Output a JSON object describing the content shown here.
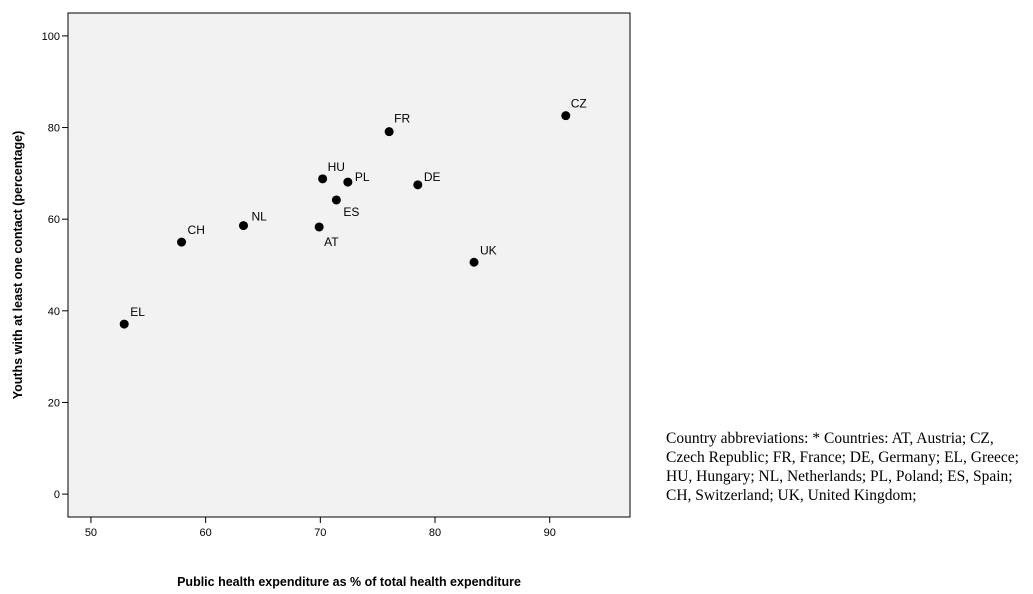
{
  "chart_data": {
    "type": "scatter",
    "title": "",
    "xlabel": "Public health expenditure as % of total health expenditure",
    "ylabel": "Youths with at least one contact (percentage)",
    "xlim": [
      48,
      97
    ],
    "ylim": [
      -5,
      105
    ],
    "x_ticks": [
      50,
      60,
      70,
      80,
      90
    ],
    "y_ticks": [
      0,
      20,
      40,
      60,
      80,
      100
    ],
    "grid": false,
    "background": "#f2f2f2",
    "points": [
      {
        "label": "EL",
        "x": 52.9,
        "y": 37.1
      },
      {
        "label": "CH",
        "x": 57.9,
        "y": 55.0
      },
      {
        "label": "NL",
        "x": 63.3,
        "y": 58.6
      },
      {
        "label": "AT",
        "x": 69.9,
        "y": 58.3
      },
      {
        "label": "HU",
        "x": 70.2,
        "y": 68.8
      },
      {
        "label": "ES",
        "x": 71.4,
        "y": 64.2
      },
      {
        "label": "PL",
        "x": 72.4,
        "y": 68.1
      },
      {
        "label": "FR",
        "x": 76.0,
        "y": 79.1
      },
      {
        "label": "DE",
        "x": 78.5,
        "y": 67.5
      },
      {
        "label": "UK",
        "x": 83.4,
        "y": 50.6
      },
      {
        "label": "CZ",
        "x": 91.4,
        "y": 82.6
      }
    ]
  },
  "footnote": "Country abbreviations: * Countries: AT, Austria; CZ, Czech Republic; FR, France; DE, Germany; EL, Greece; HU, Hungary; NL, Netherlands; PL, Poland; ES, Spain; CH, Switzerland; UK, United Kingdom;"
}
